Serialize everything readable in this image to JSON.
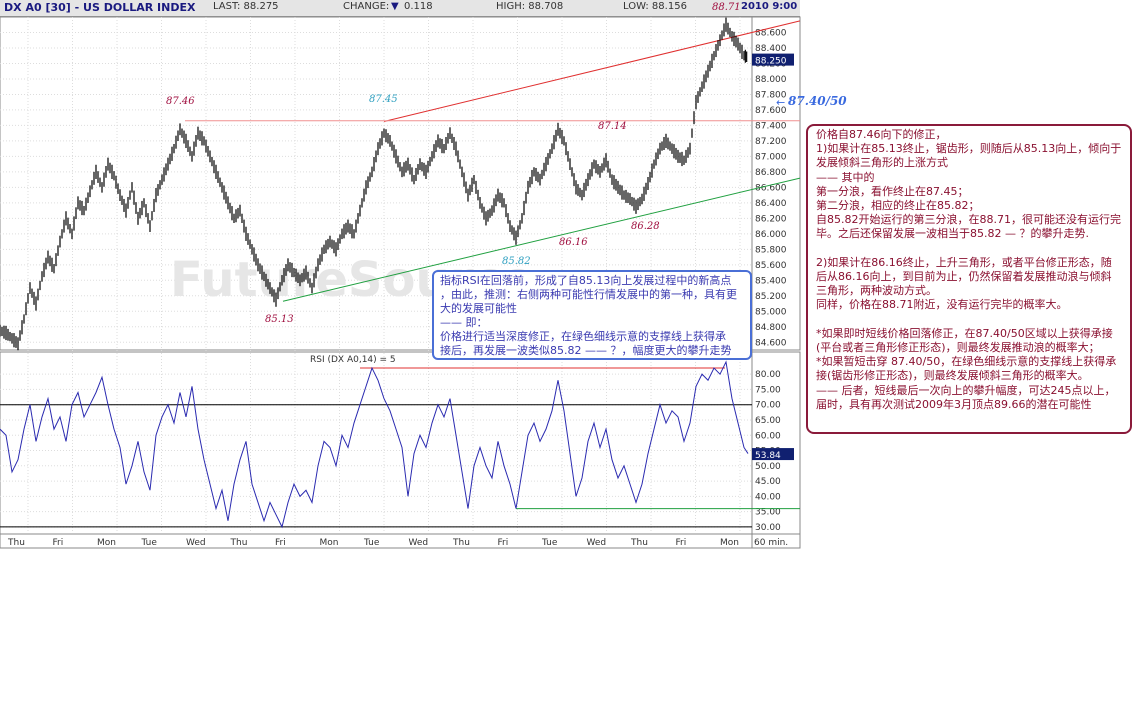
{
  "header": {
    "symbol": "DX A0 [30] - US DOLLAR INDEX",
    "last": "LAST: 88.275",
    "change_label": "CHANGE:",
    "change_value": "0.118",
    "high": "HIGH: 88.708",
    "low": "LOW: 88.156",
    "date": "2010 9:00"
  },
  "watermark": "FutureSource",
  "colors": {
    "price_bar": "#000000",
    "rsi_line": "#2a2ab0",
    "resistance_line": "#e03030",
    "support_line": "#20a040",
    "annotation_red": "#a01040",
    "annotation_cyan": "#30a0c0",
    "current_price_bg": "#102070"
  },
  "chart_data": [
    {
      "type": "candlestick",
      "title": "DX A0 [30] - US DOLLAR INDEX",
      "interval": "60 min.",
      "x_ticks": [
        "Thu",
        "Fri",
        "Mon",
        "Tue",
        "Wed",
        "Thu",
        "Fri",
        "Mon",
        "Tue",
        "Wed",
        "Thu",
        "Fri",
        "Tue",
        "Wed",
        "Thu",
        "Fri",
        "Mon"
      ],
      "y_ticks": [
        "88.600",
        "88.400",
        "88.200",
        "88.000",
        "87.800",
        "87.600",
        "87.400",
        "87.200",
        "87.000",
        "86.800",
        "86.600",
        "86.400",
        "86.200",
        "86.000",
        "85.800",
        "85.600",
        "85.400",
        "85.200",
        "85.000",
        "84.800",
        "84.600"
      ],
      "ylim": [
        84.5,
        88.8
      ],
      "current_price": "88.250",
      "close_path": [
        [
          0,
          84.75
        ],
        [
          6,
          84.72
        ],
        [
          12,
          84.65
        ],
        [
          18,
          84.58
        ],
        [
          24,
          84.9
        ],
        [
          30,
          85.3
        ],
        [
          36,
          85.1
        ],
        [
          42,
          85.45
        ],
        [
          48,
          85.7
        ],
        [
          54,
          85.55
        ],
        [
          60,
          85.9
        ],
        [
          66,
          86.2
        ],
        [
          72,
          86.0
        ],
        [
          78,
          86.4
        ],
        [
          84,
          86.3
        ],
        [
          90,
          86.55
        ],
        [
          96,
          86.8
        ],
        [
          102,
          86.6
        ],
        [
          108,
          86.9
        ],
        [
          114,
          86.75
        ],
        [
          120,
          86.5
        ],
        [
          126,
          86.3
        ],
        [
          132,
          86.6
        ],
        [
          138,
          86.2
        ],
        [
          144,
          86.4
        ],
        [
          150,
          86.1
        ],
        [
          156,
          86.5
        ],
        [
          162,
          86.7
        ],
        [
          168,
          86.9
        ],
        [
          174,
          87.1
        ],
        [
          180,
          87.35
        ],
        [
          186,
          87.2
        ],
        [
          192,
          87.0
        ],
        [
          198,
          87.3
        ],
        [
          204,
          87.2
        ],
        [
          210,
          87.0
        ],
        [
          216,
          86.8
        ],
        [
          222,
          86.6
        ],
        [
          228,
          86.4
        ],
        [
          234,
          86.2
        ],
        [
          240,
          86.3
        ],
        [
          246,
          86.0
        ],
        [
          252,
          85.8
        ],
        [
          258,
          85.6
        ],
        [
          264,
          85.45
        ],
        [
          270,
          85.3
        ],
        [
          276,
          85.15
        ],
        [
          282,
          85.4
        ],
        [
          288,
          85.6
        ],
        [
          294,
          85.5
        ],
        [
          300,
          85.4
        ],
        [
          306,
          85.5
        ],
        [
          312,
          85.3
        ],
        [
          318,
          85.6
        ],
        [
          324,
          85.8
        ],
        [
          330,
          85.9
        ],
        [
          336,
          85.8
        ],
        [
          342,
          86.0
        ],
        [
          348,
          86.1
        ],
        [
          354,
          86.0
        ],
        [
          360,
          86.3
        ],
        [
          366,
          86.6
        ],
        [
          372,
          86.8
        ],
        [
          378,
          87.1
        ],
        [
          384,
          87.3
        ],
        [
          390,
          87.2
        ],
        [
          396,
          87.0
        ],
        [
          402,
          86.8
        ],
        [
          408,
          86.9
        ],
        [
          414,
          86.7
        ],
        [
          420,
          86.9
        ],
        [
          426,
          86.8
        ],
        [
          432,
          87.0
        ],
        [
          438,
          87.2
        ],
        [
          444,
          87.1
        ],
        [
          450,
          87.3
        ],
        [
          456,
          87.1
        ],
        [
          462,
          86.8
        ],
        [
          468,
          86.5
        ],
        [
          474,
          86.7
        ],
        [
          480,
          86.4
        ],
        [
          486,
          86.2
        ],
        [
          492,
          86.3
        ],
        [
          498,
          86.5
        ],
        [
          504,
          86.4
        ],
        [
          510,
          86.1
        ],
        [
          516,
          85.95
        ],
        [
          522,
          86.2
        ],
        [
          528,
          86.6
        ],
        [
          534,
          86.8
        ],
        [
          540,
          86.7
        ],
        [
          546,
          86.9
        ],
        [
          552,
          87.1
        ],
        [
          558,
          87.35
        ],
        [
          564,
          87.2
        ],
        [
          570,
          86.9
        ],
        [
          576,
          86.6
        ],
        [
          582,
          86.5
        ],
        [
          588,
          86.7
        ],
        [
          594,
          86.9
        ],
        [
          600,
          86.8
        ],
        [
          606,
          86.95
        ],
        [
          612,
          86.7
        ],
        [
          618,
          86.6
        ],
        [
          624,
          86.5
        ],
        [
          630,
          86.45
        ],
        [
          636,
          86.35
        ],
        [
          642,
          86.45
        ],
        [
          648,
          86.65
        ],
        [
          654,
          86.9
        ],
        [
          660,
          87.1
        ],
        [
          666,
          87.2
        ],
        [
          672,
          87.1
        ],
        [
          678,
          87.0
        ],
        [
          684,
          86.95
        ],
        [
          690,
          87.1
        ],
        [
          696,
          87.7
        ],
        [
          702,
          87.9
        ],
        [
          708,
          88.1
        ],
        [
          714,
          88.3
        ],
        [
          720,
          88.5
        ],
        [
          726,
          88.7
        ],
        [
          732,
          88.55
        ],
        [
          738,
          88.45
        ],
        [
          744,
          88.3
        ],
        [
          748,
          88.28
        ]
      ],
      "annotations": [
        {
          "text": "87.46",
          "color": "red"
        },
        {
          "text": "87.45",
          "color": "cyan"
        },
        {
          "text": "87.14",
          "color": "red"
        },
        {
          "text": "86.16",
          "color": "red"
        },
        {
          "text": "86.28",
          "color": "red"
        },
        {
          "text": "85.82",
          "color": "cyan"
        },
        {
          "text": "85.13",
          "color": "red"
        },
        {
          "text": "88.71",
          "color": "red"
        },
        {
          "text": "87.40/50",
          "color": "blue"
        }
      ]
    },
    {
      "type": "line",
      "title": "RSI (DX A0,14) = 5",
      "y_ticks": [
        "80.00",
        "75.00",
        "70.00",
        "65.00",
        "60.00",
        "55.00",
        "50.00",
        "45.00",
        "40.00",
        "35.00",
        "30.00"
      ],
      "ylim": [
        28,
        83
      ],
      "current_value": "53.84",
      "reference_lines": [
        70,
        30
      ],
      "values": [
        [
          0,
          62
        ],
        [
          6,
          60
        ],
        [
          12,
          48
        ],
        [
          18,
          52
        ],
        [
          24,
          62
        ],
        [
          30,
          70
        ],
        [
          36,
          58
        ],
        [
          42,
          66
        ],
        [
          48,
          72
        ],
        [
          54,
          62
        ],
        [
          60,
          66
        ],
        [
          66,
          58
        ],
        [
          72,
          70
        ],
        [
          78,
          74
        ],
        [
          84,
          66
        ],
        [
          90,
          70
        ],
        [
          96,
          74
        ],
        [
          102,
          79
        ],
        [
          108,
          70
        ],
        [
          114,
          62
        ],
        [
          120,
          56
        ],
        [
          126,
          44
        ],
        [
          132,
          50
        ],
        [
          138,
          58
        ],
        [
          144,
          48
        ],
        [
          150,
          42
        ],
        [
          156,
          60
        ],
        [
          162,
          66
        ],
        [
          168,
          70
        ],
        [
          174,
          64
        ],
        [
          180,
          74
        ],
        [
          186,
          66
        ],
        [
          192,
          76
        ],
        [
          198,
          62
        ],
        [
          204,
          52
        ],
        [
          210,
          44
        ],
        [
          216,
          36
        ],
        [
          222,
          42
        ],
        [
          228,
          32
        ],
        [
          234,
          44
        ],
        [
          240,
          52
        ],
        [
          246,
          58
        ],
        [
          252,
          44
        ],
        [
          258,
          38
        ],
        [
          264,
          32
        ],
        [
          270,
          38
        ],
        [
          276,
          34
        ],
        [
          282,
          30
        ],
        [
          288,
          38
        ],
        [
          294,
          44
        ],
        [
          300,
          40
        ],
        [
          306,
          42
        ],
        [
          312,
          38
        ],
        [
          318,
          50
        ],
        [
          324,
          58
        ],
        [
          330,
          56
        ],
        [
          336,
          50
        ],
        [
          342,
          60
        ],
        [
          348,
          56
        ],
        [
          354,
          64
        ],
        [
          360,
          70
        ],
        [
          366,
          76
        ],
        [
          372,
          82
        ],
        [
          378,
          78
        ],
        [
          384,
          72
        ],
        [
          390,
          68
        ],
        [
          396,
          62
        ],
        [
          402,
          56
        ],
        [
          408,
          40
        ],
        [
          414,
          54
        ],
        [
          420,
          60
        ],
        [
          426,
          56
        ],
        [
          432,
          64
        ],
        [
          438,
          70
        ],
        [
          444,
          66
        ],
        [
          450,
          72
        ],
        [
          456,
          60
        ],
        [
          462,
          48
        ],
        [
          468,
          36
        ],
        [
          474,
          50
        ],
        [
          480,
          56
        ],
        [
          486,
          50
        ],
        [
          492,
          46
        ],
        [
          498,
          58
        ],
        [
          504,
          50
        ],
        [
          510,
          44
        ],
        [
          516,
          36
        ],
        [
          522,
          48
        ],
        [
          528,
          60
        ],
        [
          534,
          64
        ],
        [
          540,
          58
        ],
        [
          546,
          62
        ],
        [
          552,
          68
        ],
        [
          558,
          78
        ],
        [
          564,
          68
        ],
        [
          570,
          54
        ],
        [
          576,
          40
        ],
        [
          582,
          46
        ],
        [
          588,
          58
        ],
        [
          594,
          64
        ],
        [
          600,
          56
        ],
        [
          606,
          62
        ],
        [
          612,
          52
        ],
        [
          618,
          46
        ],
        [
          624,
          50
        ],
        [
          630,
          44
        ],
        [
          636,
          38
        ],
        [
          642,
          44
        ],
        [
          648,
          54
        ],
        [
          654,
          62
        ],
        [
          660,
          70
        ],
        [
          666,
          64
        ],
        [
          672,
          68
        ],
        [
          678,
          66
        ],
        [
          684,
          58
        ],
        [
          690,
          64
        ],
        [
          696,
          76
        ],
        [
          702,
          80
        ],
        [
          708,
          78
        ],
        [
          714,
          82
        ],
        [
          720,
          80
        ],
        [
          726,
          84
        ],
        [
          732,
          72
        ],
        [
          738,
          64
        ],
        [
          744,
          56
        ],
        [
          748,
          54
        ]
      ]
    }
  ],
  "rsi_label": "RSI (DX A0,14) = 5",
  "rsi_value": "53.84",
  "x_axis_unit": "60 min.",
  "blue_box": {
    "lines": [
      "指标RSI在回落前，形成了自85.13向上发展过程中的新高点",
      "，由此，推测：右侧两种可能性行情发展中的第一种，具有更",
      "大的发展可能性",
      "—— 即：",
      "价格进行适当深度修正，在绿色细线示意的支撑线上获得承",
      "接后，再发展一波类似85.82 —— ？，幅度更大的攀升走势"
    ]
  },
  "red_box": {
    "lines": [
      "价格自87.46向下的修正，",
      "1)如果计在85.13终止，锯齿形，则随后从85.13向上，倾向于",
      "发展倾斜三角形的上涨方式",
      "—— 其中的",
      "第一分浪，看作终止在87.45；",
      "第二分浪，相应的终止在85.82；",
      "自85.82开始运行的第三分浪，在88.71，很可能还没有运行完",
      "毕。之后还保留发展一波相当于85.82 — ？的攀升走势.",
      "",
      "2)如果计在86.16终止，上升三角形，或者平台修正形态，随",
      "后从86.16向上，到目前为止，仍然保留着发展推动浪与倾斜",
      "三角形，两种波动方式。",
      "同样，价格在88.71附近，没有运行完毕的概率大。",
      "",
      "*如果即时短线价格回落修正，在87.40/50区域以上获得承接",
      "(平台或者三角形修正形态)，则最终发展推动浪的概率大；",
      "*如果暂短击穿 87.40/50，在绿色细线示意的支撑线上获得承",
      "接(锯齿形修正形态)，则最终发展倾斜三角形的概率大。",
      "—— 后者，短线最后一次向上的攀升幅度，可达245点以上，",
      "届时，具有再次测试2009年3月顶点89.66的潜在可能性"
    ]
  }
}
